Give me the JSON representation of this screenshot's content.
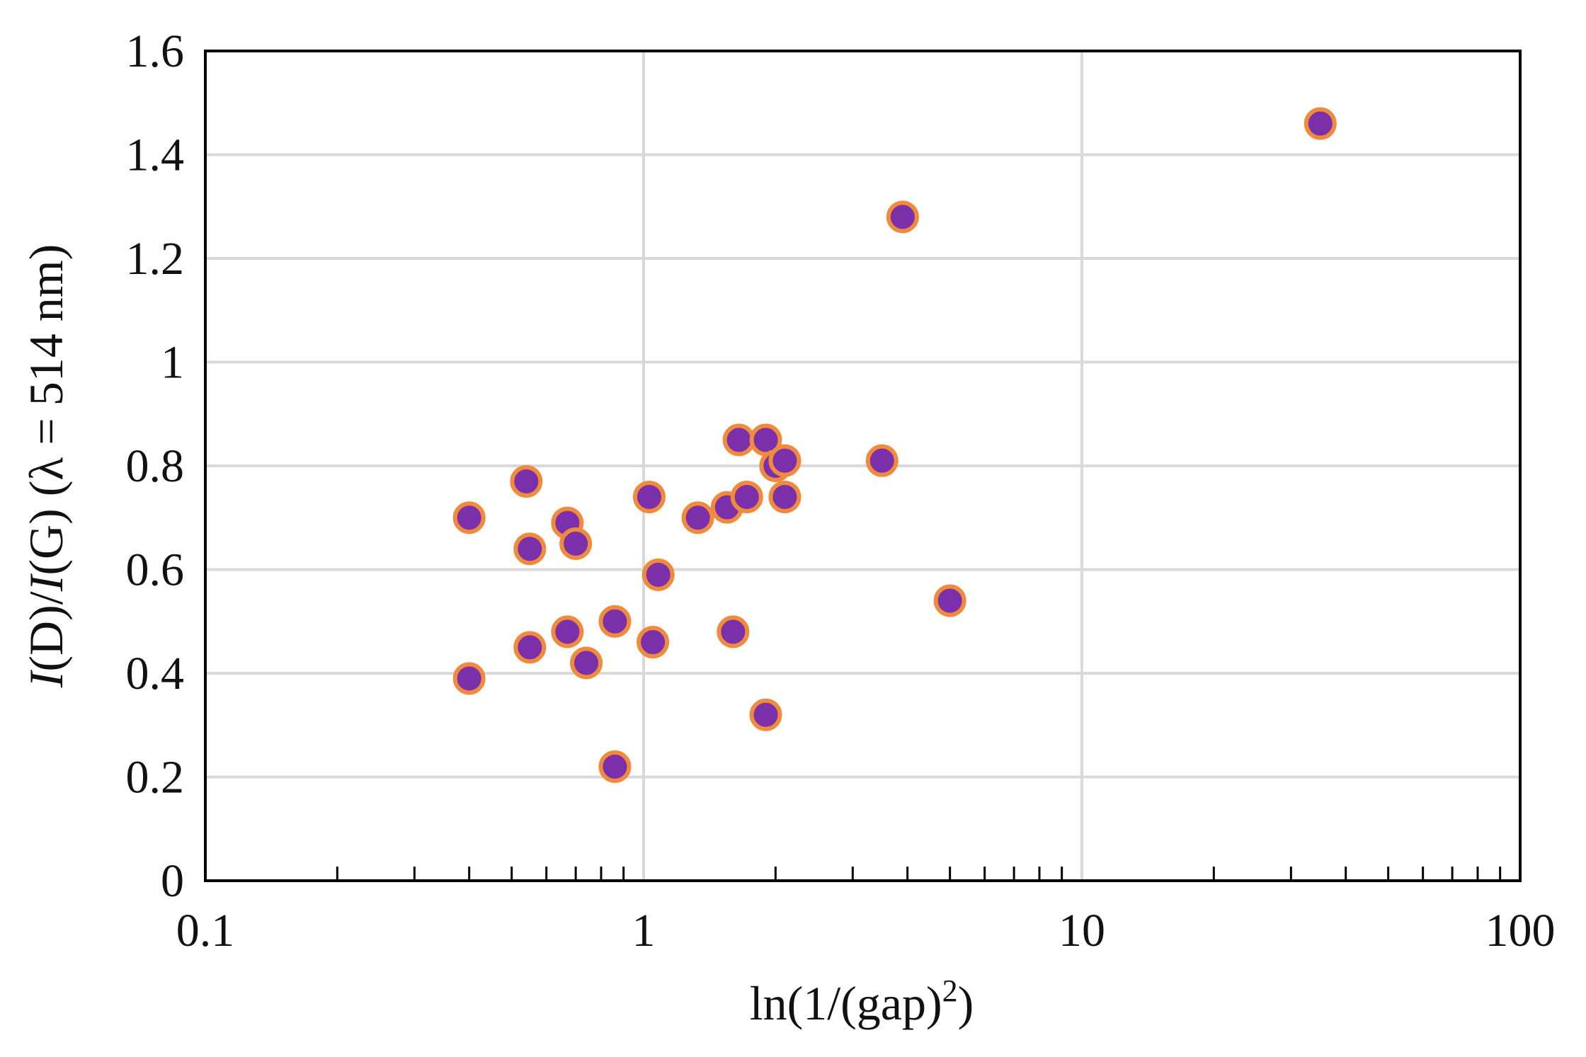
{
  "chart_data": {
    "type": "scatter",
    "xlabel": {
      "prefix": "ln(1/(gap)",
      "superscript": "2",
      "suffix": ")"
    },
    "ylabel": {
      "i1": "I",
      "t1": "(D)/",
      "i2": "I",
      "t2": "(G) (λ = 514 nm)"
    },
    "xscale": "log",
    "xlim": [
      0.1,
      100
    ],
    "ylim": [
      0,
      1.6
    ],
    "x_ticks": [
      {
        "value": 0.1,
        "label": "0.1"
      },
      {
        "value": 1,
        "label": "1"
      },
      {
        "value": 10,
        "label": "10"
      },
      {
        "value": 100,
        "label": "100"
      }
    ],
    "y_ticks": [
      {
        "value": 0,
        "label": "0"
      },
      {
        "value": 0.2,
        "label": "0.2"
      },
      {
        "value": 0.4,
        "label": "0.4"
      },
      {
        "value": 0.6,
        "label": "0.6"
      },
      {
        "value": 0.8,
        "label": "0.8"
      },
      {
        "value": 1.0,
        "label": "1"
      },
      {
        "value": 1.2,
        "label": "1.2"
      },
      {
        "value": 1.4,
        "label": "1.4"
      },
      {
        "value": 1.6,
        "label": "1.6"
      }
    ],
    "grid": true,
    "legend": "none",
    "marker_fill": "#7B2FA8",
    "marker_edge": "#F08A3C",
    "gridline_color": "#D9D9D9",
    "series": [
      {
        "points": [
          {
            "x": 0.4,
            "y": 0.7
          },
          {
            "x": 0.4,
            "y": 0.39
          },
          {
            "x": 0.54,
            "y": 0.77
          },
          {
            "x": 0.55,
            "y": 0.64
          },
          {
            "x": 0.55,
            "y": 0.45
          },
          {
            "x": 0.67,
            "y": 0.69
          },
          {
            "x": 0.67,
            "y": 0.48
          },
          {
            "x": 0.7,
            "y": 0.65
          },
          {
            "x": 0.74,
            "y": 0.42
          },
          {
            "x": 0.86,
            "y": 0.5
          },
          {
            "x": 0.86,
            "y": 0.22
          },
          {
            "x": 1.03,
            "y": 0.74
          },
          {
            "x": 1.05,
            "y": 0.46
          },
          {
            "x": 1.08,
            "y": 0.59
          },
          {
            "x": 1.33,
            "y": 0.7
          },
          {
            "x": 1.55,
            "y": 0.72
          },
          {
            "x": 1.6,
            "y": 0.48
          },
          {
            "x": 1.65,
            "y": 0.85
          },
          {
            "x": 1.72,
            "y": 0.74
          },
          {
            "x": 1.9,
            "y": 0.85
          },
          {
            "x": 1.9,
            "y": 0.32
          },
          {
            "x": 2.0,
            "y": 0.8
          },
          {
            "x": 2.1,
            "y": 0.81
          },
          {
            "x": 2.1,
            "y": 0.74
          },
          {
            "x": 3.5,
            "y": 0.81
          },
          {
            "x": 3.9,
            "y": 1.28
          },
          {
            "x": 5.0,
            "y": 0.54
          },
          {
            "x": 35.0,
            "y": 1.46
          }
        ]
      }
    ]
  }
}
